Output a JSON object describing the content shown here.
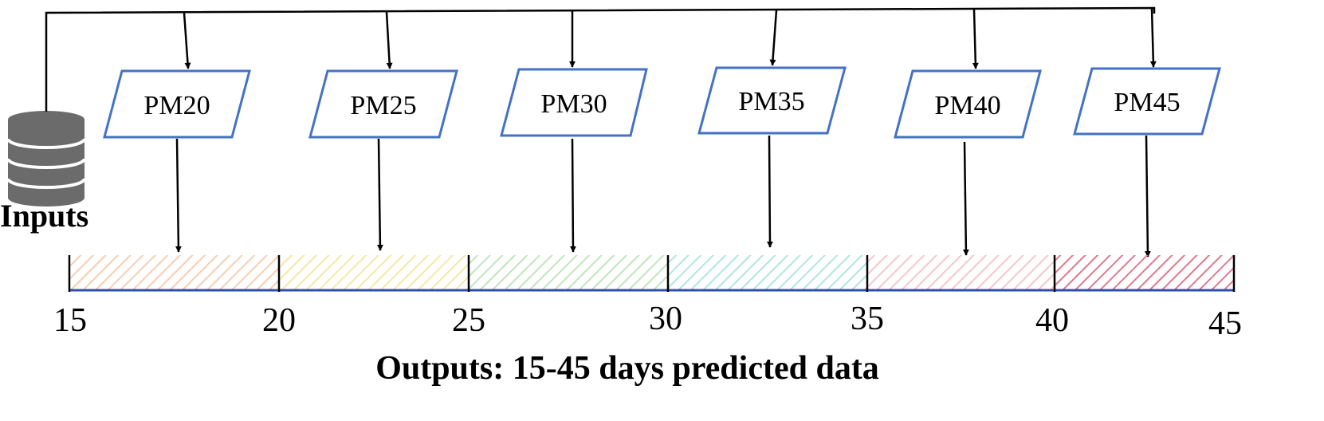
{
  "inputs": {
    "label": "Inputs",
    "icon": "database-icon"
  },
  "models": [
    {
      "label": "PM20"
    },
    {
      "label": "PM25"
    },
    {
      "label": "PM30"
    },
    {
      "label": "PM35"
    },
    {
      "label": "PM40"
    },
    {
      "label": "PM45"
    }
  ],
  "timeline": {
    "ticks": [
      "15",
      "20",
      "25",
      "30",
      "35",
      "40",
      "45"
    ],
    "segment_colors": [
      "#f5c9a8",
      "#f3e79a",
      "#b9e3b5",
      "#a9e2dc",
      "#f2b8c2",
      "#e07a8c"
    ],
    "caption": "Outputs: 15-45 days predicted data"
  },
  "colors": {
    "box_border": "#4472c4",
    "axis": "#2f4fa8",
    "line": "#000000"
  }
}
